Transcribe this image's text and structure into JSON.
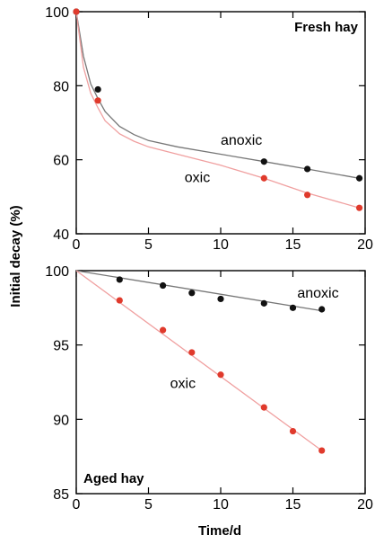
{
  "figure": {
    "ylabel": "Initial decay (%)",
    "xlabel": "Time/d"
  },
  "chart_data": [
    {
      "type": "scatter",
      "title": "Fresh hay",
      "xlabel": "",
      "ylabel": "Initial decay (%)",
      "xlim": [
        0,
        20
      ],
      "ylim": [
        40,
        100
      ],
      "xticks": [
        "0",
        "5",
        "10",
        "15",
        "20"
      ],
      "yticks": [
        "40",
        "60",
        "80",
        "100"
      ],
      "grid": false,
      "series": [
        {
          "name": "anoxic",
          "color": "#111111",
          "line_color": "#777777",
          "x": [
            0,
            1.5,
            13,
            16,
            19.6
          ],
          "y": [
            100,
            79,
            59.5,
            57.5,
            55
          ],
          "fit": [
            [
              0,
              100
            ],
            [
              0.5,
              88
            ],
            [
              1,
              80.5
            ],
            [
              1.5,
              76.5
            ],
            [
              2,
              73
            ],
            [
              3,
              69
            ],
            [
              4,
              66.8
            ],
            [
              5,
              65.2
            ],
            [
              7,
              63.5
            ],
            [
              10,
              61.5
            ],
            [
              13,
              59.5
            ],
            [
              16,
              57.5
            ],
            [
              19.6,
              55
            ]
          ]
        },
        {
          "name": "oxic",
          "color": "#e03a2c",
          "line_color": "#f0a0a0",
          "x": [
            0,
            1.5,
            13,
            16,
            19.6
          ],
          "y": [
            100,
            76,
            55,
            50.5,
            47
          ],
          "fit": [
            [
              0,
              100
            ],
            [
              0.5,
              85
            ],
            [
              1,
              78
            ],
            [
              1.5,
              74
            ],
            [
              2,
              70.5
            ],
            [
              3,
              67
            ],
            [
              4,
              65
            ],
            [
              5,
              63.5
            ],
            [
              7,
              61.5
            ],
            [
              10,
              58.5
            ],
            [
              13,
              55
            ],
            [
              16,
              51
            ],
            [
              19.6,
              47
            ]
          ]
        }
      ],
      "annotations": [
        {
          "text": "anoxic",
          "x": 10,
          "y": 64
        },
        {
          "text": "oxic",
          "x": 7.5,
          "y": 54
        }
      ]
    },
    {
      "type": "scatter",
      "title": "Aged hay",
      "xlabel": "Time/d",
      "ylabel": "Initial decay (%)",
      "xlim": [
        0,
        20
      ],
      "ylim": [
        85,
        100
      ],
      "xticks": [
        "0",
        "5",
        "10",
        "15",
        "20"
      ],
      "yticks": [
        "85",
        "90",
        "95",
        "100"
      ],
      "grid": false,
      "series": [
        {
          "name": "anoxic",
          "color": "#111111",
          "line_color": "#777777",
          "x": [
            3,
            6,
            8,
            10,
            13,
            15,
            17
          ],
          "y": [
            99.4,
            99,
            98.5,
            98.1,
            97.8,
            97.5,
            97.4
          ],
          "fit": [
            [
              0,
              100
            ],
            [
              17,
              97.3
            ]
          ]
        },
        {
          "name": "oxic",
          "color": "#e03a2c",
          "line_color": "#f0a0a0",
          "x": [
            3,
            6,
            8,
            10,
            13,
            15,
            17
          ],
          "y": [
            98,
            96,
            94.5,
            93,
            90.8,
            89.2,
            87.9
          ],
          "fit": [
            [
              0,
              100
            ],
            [
              17,
              87.9
            ]
          ]
        }
      ],
      "annotations": [
        {
          "text": "anoxic",
          "x": 15.3,
          "y": 98.2
        },
        {
          "text": "oxic",
          "x": 6.5,
          "y": 92.1
        }
      ]
    }
  ]
}
